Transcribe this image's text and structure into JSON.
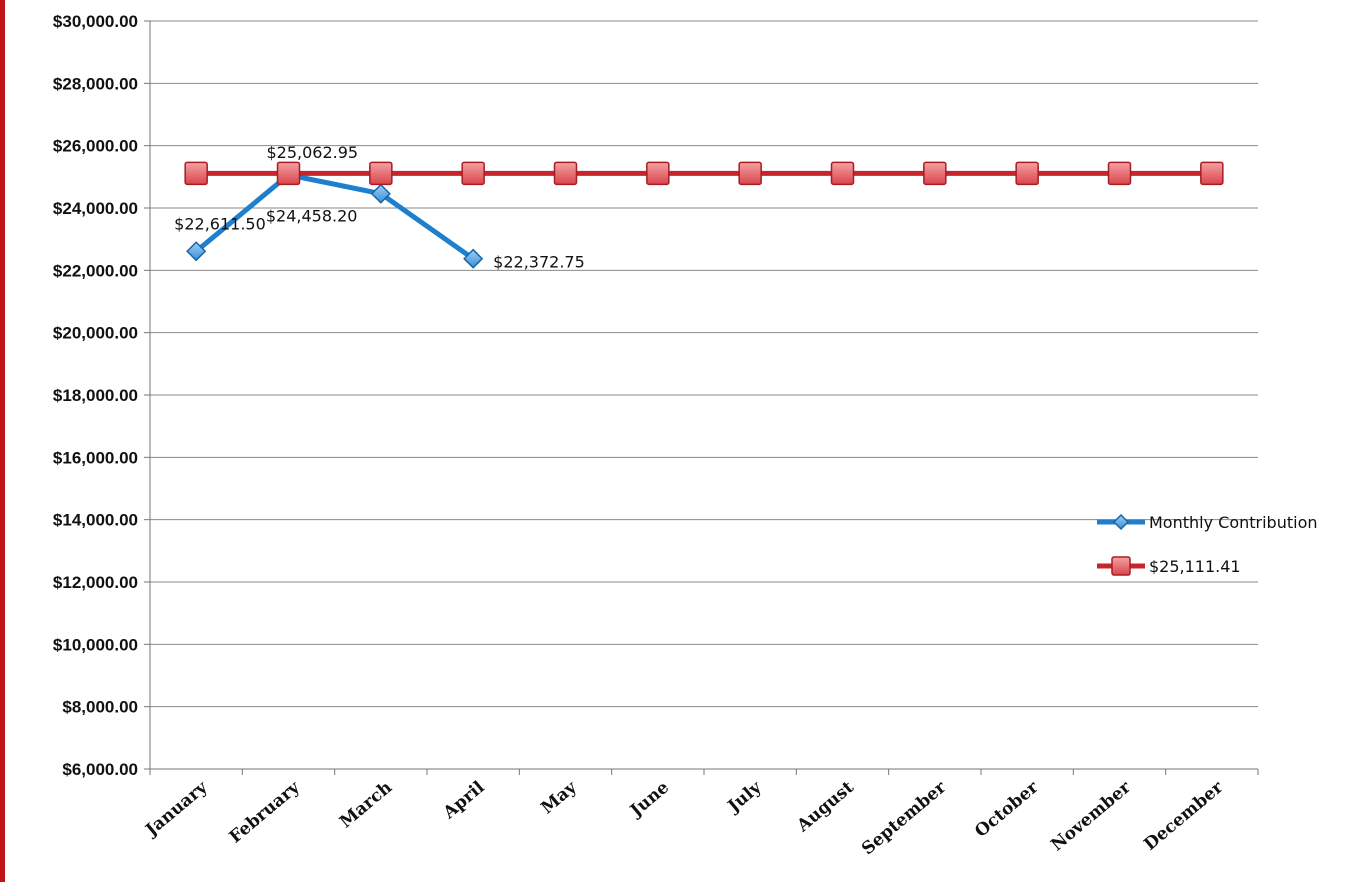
{
  "chart_data": {
    "type": "line",
    "categories": [
      "January",
      "February",
      "March",
      "April",
      "May",
      "June",
      "July",
      "August",
      "September",
      "October",
      "November",
      "December"
    ],
    "ylim": [
      6000,
      30000
    ],
    "ytick_step": 2000,
    "ytick_labels": [
      "$6,000.00",
      "$8,000.00",
      "$10,000.00",
      "$12,000.00",
      "$14,000.00",
      "$16,000.00",
      "$18,000.00",
      "$20,000.00",
      "$22,000.00",
      "$24,000.00",
      "$26,000.00",
      "$28,000.00",
      "$30,000.00"
    ],
    "grid": true,
    "legend": {
      "position": "right"
    },
    "series": [
      {
        "name": "Monthly Contribution",
        "color": "#1f7fcf",
        "marker": "diamond",
        "values": [
          22611.5,
          25062.95,
          24458.2,
          22372.75,
          null,
          null,
          null,
          null,
          null,
          null,
          null,
          null
        ],
        "data_labels": [
          "$22,611.50",
          "$25,062.95",
          "$24,458.20",
          "$22,372.75",
          null,
          null,
          null,
          null,
          null,
          null,
          null,
          null
        ]
      },
      {
        "name": "$25,111.41",
        "color": "#c8242b",
        "marker": "square",
        "values": [
          25111.41,
          25111.41,
          25111.41,
          25111.41,
          25111.41,
          25111.41,
          25111.41,
          25111.41,
          25111.41,
          25111.41,
          25111.41,
          25111.41
        ]
      }
    ]
  }
}
